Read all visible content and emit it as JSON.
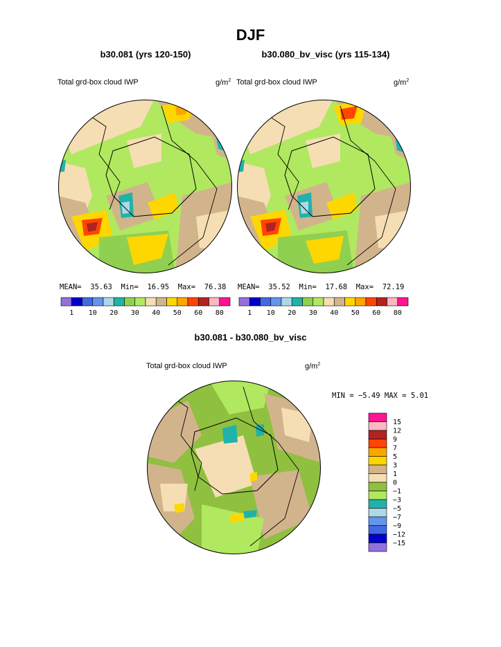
{
  "page": {
    "title": "DJF"
  },
  "panels": [
    {
      "case_label": "b30.081 (yrs 120-150)",
      "variable": "Total grd-box cloud IWP",
      "units": "g/m",
      "units_exp": "2",
      "stats": {
        "mean_label": "MEAN=",
        "mean": "35.63",
        "min_label": "Min=",
        "min": "16.95",
        "max_label": "Max=",
        "max": "76.38"
      }
    },
    {
      "case_label": "b30.080_bv_visc (yrs 115-134)",
      "variable": "Total grd-box cloud IWP",
      "units": "g/m",
      "units_exp": "2",
      "stats": {
        "mean_label": "MEAN=",
        "mean": "35.52",
        "min_label": "Min=",
        "min": "17.68",
        "max_label": "Max=",
        "max": "72.19"
      }
    }
  ],
  "diff_panel": {
    "case_label": "b30.081 - b30.080_bv_visc",
    "variable": "Total grd-box cloud IWP",
    "units": "g/m",
    "units_exp": "2",
    "stats": {
      "min_label": "MIN =",
      "min": "−5.49",
      "max_label": "MAX =",
      "max": "5.01"
    }
  },
  "colorbar": {
    "colors": [
      "#9370DB",
      "#0000CD",
      "#4169E1",
      "#6495ED",
      "#ADD8E6",
      "#20B2AA",
      "#90D050",
      "#B0E860",
      "#F5DEB3",
      "#D2B48C",
      "#FFD700",
      "#FFA500",
      "#FF4500",
      "#B22222",
      "#FFB6C1",
      "#FF1493"
    ],
    "tick_labels": [
      "1",
      "10",
      "20",
      "30",
      "40",
      "50",
      "60",
      "80"
    ]
  },
  "diff_colorbar": {
    "colors": [
      "#FF1493",
      "#FFB6C1",
      "#B22222",
      "#FF4500",
      "#FFA500",
      "#FFD700",
      "#D2B48C",
      "#F5DEB3",
      "#90C040",
      "#B0E860",
      "#20B2AA",
      "#ADD8E6",
      "#6495ED",
      "#4169E1",
      "#0000CD",
      "#9370DB"
    ],
    "tick_labels": [
      "15",
      "12",
      "9",
      "7",
      "5",
      "3",
      "1",
      "0",
      "−1",
      "−3",
      "−5",
      "−7",
      "−9",
      "−12",
      "−15"
    ]
  }
}
